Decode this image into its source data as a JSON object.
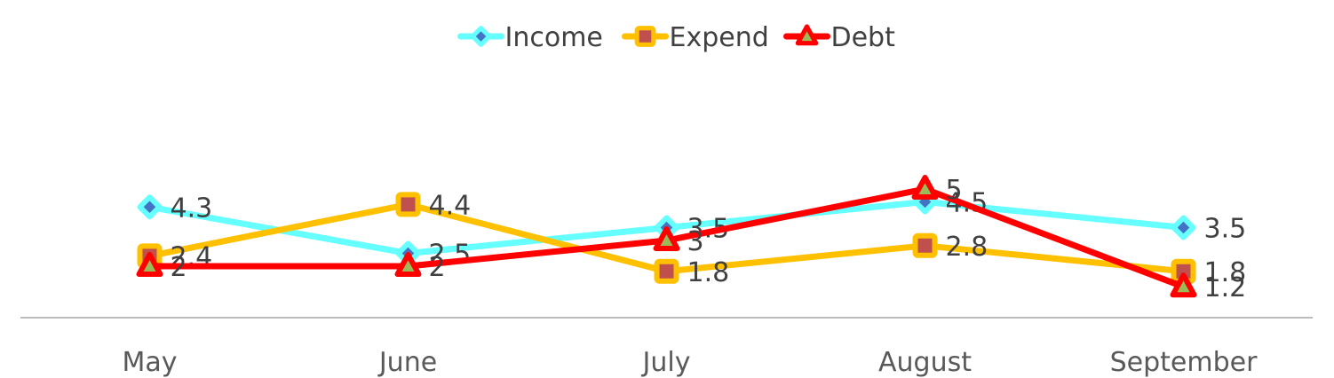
{
  "chart_data": {
    "type": "line",
    "title": "",
    "xlabel": "",
    "ylabel": "",
    "categories": [
      "May",
      "June",
      "July",
      "August",
      "September"
    ],
    "ylim": [
      0,
      6.5
    ],
    "grid": false,
    "legend_position": "top",
    "series": [
      {
        "name": "Income",
        "values": [
          4.3,
          2.5,
          3.5,
          4.5,
          3.5
        ],
        "color": "#66ffff",
        "marker": "diamond",
        "marker_fill": "#4472c4"
      },
      {
        "name": "Expend",
        "values": [
          2.4,
          4.4,
          1.8,
          2.8,
          1.8
        ],
        "color": "#ffc000",
        "marker": "square",
        "marker_fill": "#c0504d"
      },
      {
        "name": "Debt",
        "values": [
          2,
          2,
          3,
          5,
          1.2
        ],
        "color": "#ff0000",
        "marker": "triangle",
        "marker_fill": "#9bbb59"
      }
    ],
    "axis_color": "#a6a6a6"
  }
}
